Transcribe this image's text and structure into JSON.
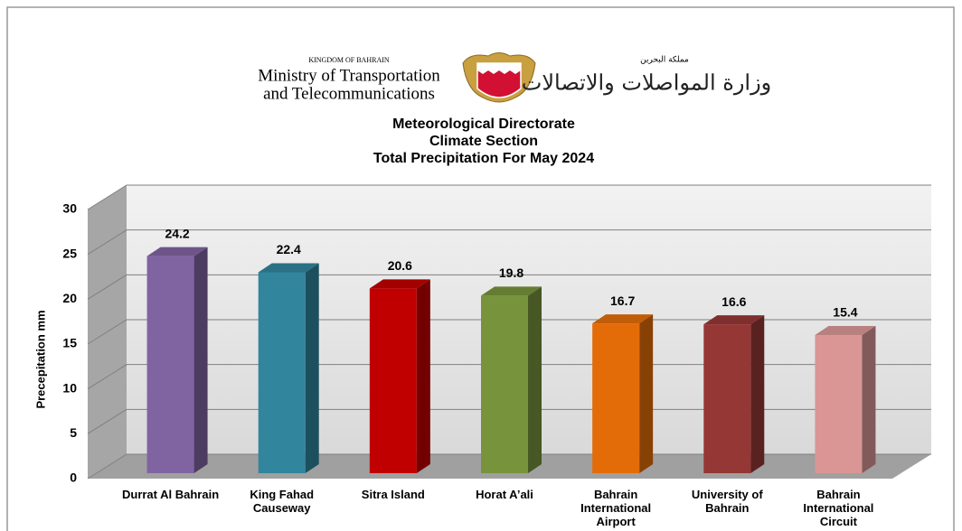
{
  "header": {
    "kingdom_en": "KINGDOM OF BAHRAIN",
    "ministry_en": [
      "Ministry of Transportation",
      "and Telecommunications"
    ],
    "kingdom_ar": "مملكة البحرين",
    "ministry_ar": "وزارة المواصلات والاتصالات"
  },
  "chart_data": {
    "type": "bar",
    "title": [
      "Meteorological Directorate",
      "Climate Section",
      "Total Precipitation For May 2024"
    ],
    "ylabel": "Precepitation  mm",
    "categories": [
      "Durrat Al Bahrain",
      "King Fahad Causeway",
      "Sitra Island",
      "Horat A’ali",
      "Bahrain International Airport",
      "University of Bahrain",
      "Bahrain International Circuit"
    ],
    "values": [
      24.2,
      22.4,
      20.6,
      19.8,
      16.7,
      16.6,
      15.4
    ],
    "colors": [
      "#8064a2",
      "#31859c",
      "#c00000",
      "#77933c",
      "#e36c09",
      "#953735",
      "#d99694"
    ],
    "ylim": [
      0,
      30
    ],
    "yticks": [
      0,
      5,
      10,
      15,
      20,
      25,
      30
    ],
    "grid": true
  }
}
